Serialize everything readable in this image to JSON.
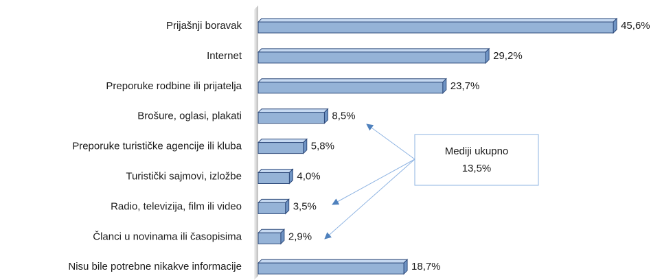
{
  "chart_data": {
    "type": "bar",
    "orientation": "horizontal",
    "categories": [
      "Prijašnji boravak",
      "Internet",
      "Preporuke rodbine ili prijatelja",
      "Brošure, oglasi, plakati",
      "Preporuke turističke agencije ili kluba",
      "Turistički sajmovi, izložbe",
      "Radio, televizija, film ili video",
      "Članci u novinama ili časopisima",
      "Nisu bile potrebne nikakve informacije"
    ],
    "values": [
      45.6,
      29.2,
      23.7,
      8.5,
      5.8,
      4.0,
      3.5,
      2.9,
      18.7
    ],
    "value_labels": [
      "45,6%",
      "29,2%",
      "23,7%",
      "8,5%",
      "5,8%",
      "4,0%",
      "3,5%",
      "2,9%",
      "18,7%"
    ],
    "color": "#95b3d7",
    "annotation": {
      "lines": [
        "Mediji ukupno",
        "13,5%"
      ]
    }
  }
}
